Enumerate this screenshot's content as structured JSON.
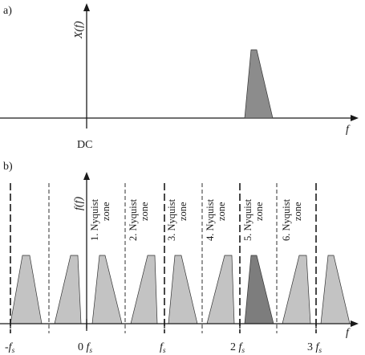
{
  "panel_a": {
    "label": "a)",
    "ylabel": "X(f)",
    "xlabel": "f",
    "dc_label": "DC",
    "colors": {
      "spectrum": "#8c8c8c"
    }
  },
  "panel_b": {
    "label": "b)",
    "ylabel": "f(f)",
    "xlabel": "f",
    "ticks": [
      {
        "id": "tick-minus-fs",
        "parts": [
          {
            "t": "-",
            "it": false
          },
          {
            "t": "f",
            "it": true
          },
          {
            "t": "s",
            "it": true,
            "sub": true
          }
        ]
      },
      {
        "id": "tick-zero",
        "parts": [
          {
            "t": "0 ",
            "it": false
          },
          {
            "t": "f",
            "it": true
          },
          {
            "t": "s",
            "it": true,
            "sub": true
          }
        ]
      },
      {
        "id": "tick-fs",
        "parts": [
          {
            "t": "f",
            "it": true
          },
          {
            "t": "s",
            "it": true,
            "sub": true
          }
        ]
      },
      {
        "id": "tick-2fs",
        "parts": [
          {
            "t": "2 ",
            "it": false
          },
          {
            "t": "f",
            "it": true
          },
          {
            "t": "s",
            "it": true,
            "sub": true
          }
        ]
      },
      {
        "id": "tick-3fs",
        "parts": [
          {
            "t": "3 ",
            "it": false
          },
          {
            "t": "f",
            "it": true
          },
          {
            "t": "s",
            "it": true,
            "sub": true
          }
        ]
      }
    ],
    "zones": [
      {
        "line1": "1. Nyquist",
        "line2": "zone"
      },
      {
        "line1": "2. Nyquist",
        "line2": "zone"
      },
      {
        "line1": "3. Nyquist",
        "line2": "zone"
      },
      {
        "line1": "4. Nyquist",
        "line2": "zone"
      },
      {
        "line1": "5. Nyquist",
        "line2": "zone"
      },
      {
        "line1": "6. Nyquist",
        "line2": "zone"
      }
    ],
    "colors": {
      "image": "#c3c3c3",
      "original": "#7d7d7d"
    }
  }
}
